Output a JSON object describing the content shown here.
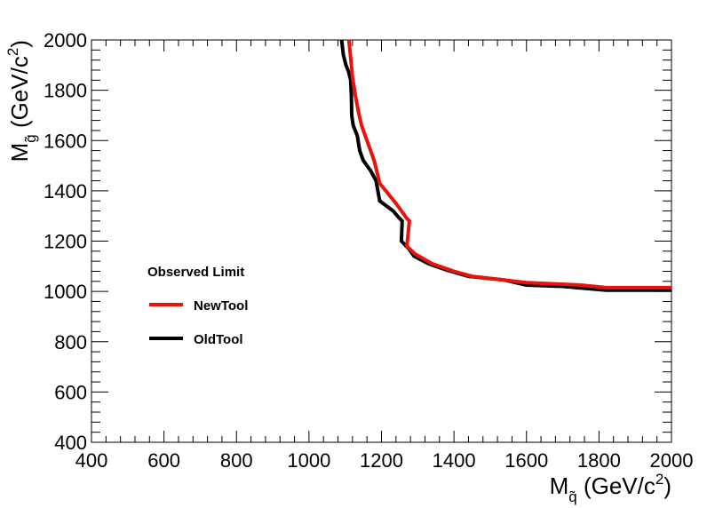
{
  "chart_data": {
    "type": "line",
    "xlim": [
      400,
      2000
    ],
    "ylim": [
      400,
      2000
    ],
    "x_ticks": [
      "400",
      "600",
      "800",
      "1000",
      "1200",
      "1400",
      "1600",
      "1800",
      "2000"
    ],
    "y_ticks": [
      "400",
      "600",
      "800",
      "1000",
      "1200",
      "1400",
      "1600",
      "1800",
      "2000"
    ],
    "xlabel": {
      "main": "M",
      "sub": "q̃",
      "units_pre": " (GeV/c",
      "sup": "2",
      "units_post": ")"
    },
    "ylabel": {
      "main": "M",
      "sub": "g̃",
      "units_pre": " (GeV/c",
      "sup": "2",
      "units_post": ")"
    },
    "legend": {
      "title": "Observed Limit",
      "position": "center-left"
    },
    "grid": false,
    "series": [
      {
        "name": "NewTool",
        "color": "#e8140c",
        "points": [
          [
            1110,
            2000
          ],
          [
            1115,
            1930
          ],
          [
            1120,
            1850
          ],
          [
            1128,
            1780
          ],
          [
            1137,
            1710
          ],
          [
            1145,
            1660
          ],
          [
            1160,
            1600
          ],
          [
            1180,
            1520
          ],
          [
            1195,
            1430
          ],
          [
            1212,
            1400
          ],
          [
            1240,
            1350
          ],
          [
            1270,
            1290
          ],
          [
            1277,
            1280
          ],
          [
            1270,
            1180
          ],
          [
            1292,
            1150
          ],
          [
            1340,
            1110
          ],
          [
            1400,
            1080
          ],
          [
            1450,
            1060
          ],
          [
            1540,
            1045
          ],
          [
            1600,
            1035
          ],
          [
            1750,
            1025
          ],
          [
            1820,
            1015
          ],
          [
            2000,
            1015
          ]
        ]
      },
      {
        "name": "OldTool",
        "color": "#000000",
        "points": [
          [
            1090,
            2000
          ],
          [
            1095,
            1940
          ],
          [
            1102,
            1900
          ],
          [
            1110,
            1870
          ],
          [
            1115,
            1840
          ],
          [
            1117,
            1780
          ],
          [
            1118,
            1700
          ],
          [
            1122,
            1660
          ],
          [
            1133,
            1620
          ],
          [
            1140,
            1560
          ],
          [
            1150,
            1520
          ],
          [
            1170,
            1480
          ],
          [
            1185,
            1440
          ],
          [
            1195,
            1360
          ],
          [
            1232,
            1320
          ],
          [
            1250,
            1290
          ],
          [
            1257,
            1280
          ],
          [
            1255,
            1200
          ],
          [
            1275,
            1170
          ],
          [
            1290,
            1140
          ],
          [
            1330,
            1110
          ],
          [
            1380,
            1085
          ],
          [
            1440,
            1060
          ],
          [
            1540,
            1045
          ],
          [
            1600,
            1025
          ],
          [
            1700,
            1020
          ],
          [
            1820,
            1005
          ],
          [
            2000,
            1005
          ]
        ]
      }
    ]
  }
}
